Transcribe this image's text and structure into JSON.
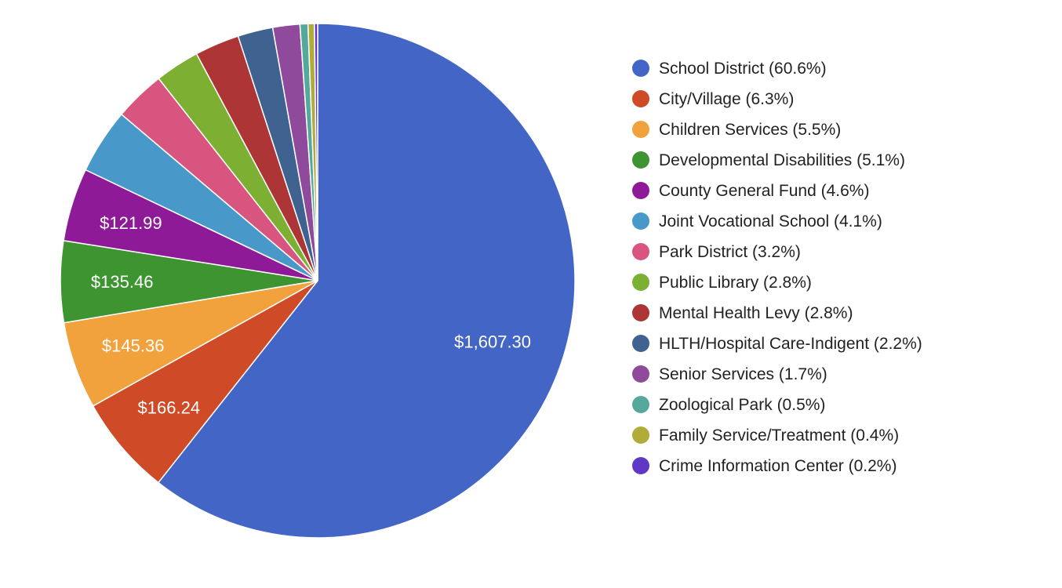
{
  "chart_data": {
    "type": "pie",
    "title": "",
    "legend": "right",
    "slices": [
      {
        "label": "School District (60.6%)",
        "value": 1607.3,
        "percent": 60.6,
        "color": "#4366c6",
        "data_label": "$1,607.30"
      },
      {
        "label": "City/Village (6.3%)",
        "value": 166.24,
        "percent": 6.3,
        "color": "#cf4a26",
        "data_label": "$166.24"
      },
      {
        "label": "Children Services (5.5%)",
        "value": 145.36,
        "percent": 5.5,
        "color": "#f2a23c",
        "data_label": "$145.36"
      },
      {
        "label": "Developmental Disabilities (5.1%)",
        "value": 135.46,
        "percent": 5.1,
        "color": "#3f9432",
        "data_label": "$135.46"
      },
      {
        "label": "County General Fund (4.6%)",
        "value": 121.99,
        "percent": 4.6,
        "color": "#8e1a98",
        "data_label": "$121.99"
      },
      {
        "label": "Joint Vocational School (4.1%)",
        "value": 108.74,
        "percent": 4.1,
        "color": "#4899c9",
        "data_label": ""
      },
      {
        "label": "Park District (3.2%)",
        "value": 84.87,
        "percent": 3.2,
        "color": "#d7557e",
        "data_label": ""
      },
      {
        "label": "Public Library (2.8%)",
        "value": 74.26,
        "percent": 2.8,
        "color": "#7daf32",
        "data_label": ""
      },
      {
        "label": "Mental Health Levy (2.8%)",
        "value": 74.26,
        "percent": 2.8,
        "color": "#ad3535",
        "data_label": ""
      },
      {
        "label": "HLTH/Hospital Care-Indigent (2.2%)",
        "value": 58.35,
        "percent": 2.2,
        "color": "#3f6291",
        "data_label": ""
      },
      {
        "label": "Senior Services (1.7%)",
        "value": 45.09,
        "percent": 1.7,
        "color": "#8f4a9b",
        "data_label": ""
      },
      {
        "label": "Zoological Park (0.5%)",
        "value": 13.26,
        "percent": 0.5,
        "color": "#54a99c",
        "data_label": ""
      },
      {
        "label": "Family Service/Treatment (0.4%)",
        "value": 10.61,
        "percent": 0.4,
        "color": "#b0ac3a",
        "data_label": ""
      },
      {
        "label": "Crime Information Center (0.2%)",
        "value": 5.3,
        "percent": 0.2,
        "color": "#5f38c6",
        "data_label": ""
      }
    ]
  }
}
